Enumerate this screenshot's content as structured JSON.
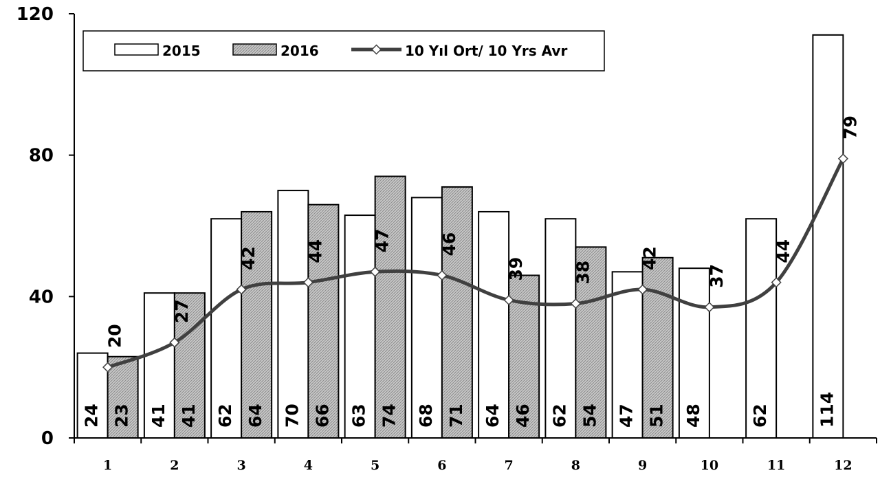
{
  "chart_data": {
    "type": "bar",
    "categories": [
      "1",
      "2",
      "3",
      "4",
      "5",
      "6",
      "7",
      "8",
      "9",
      "10",
      "11",
      "12"
    ],
    "series": [
      {
        "name": "2015",
        "type": "bar",
        "values": [
          24,
          41,
          62,
          70,
          63,
          68,
          64,
          62,
          47,
          48,
          62,
          114
        ],
        "color": "#ffffff"
      },
      {
        "name": "2016",
        "type": "bar",
        "values": [
          23,
          41,
          64,
          66,
          74,
          71,
          46,
          54,
          51,
          null,
          null,
          null
        ],
        "color": "#c8c8c8"
      },
      {
        "name": "10 Yıl Ort/ 10 Yrs Avr",
        "type": "line",
        "values": [
          20,
          27,
          42,
          44,
          47,
          46,
          39,
          38,
          42,
          37,
          44,
          79
        ],
        "color": "#404040"
      }
    ],
    "ylim": [
      0,
      120
    ],
    "yticks": [
      "0",
      "40",
      "80",
      "120"
    ],
    "grid": false,
    "legend": "top-left"
  }
}
